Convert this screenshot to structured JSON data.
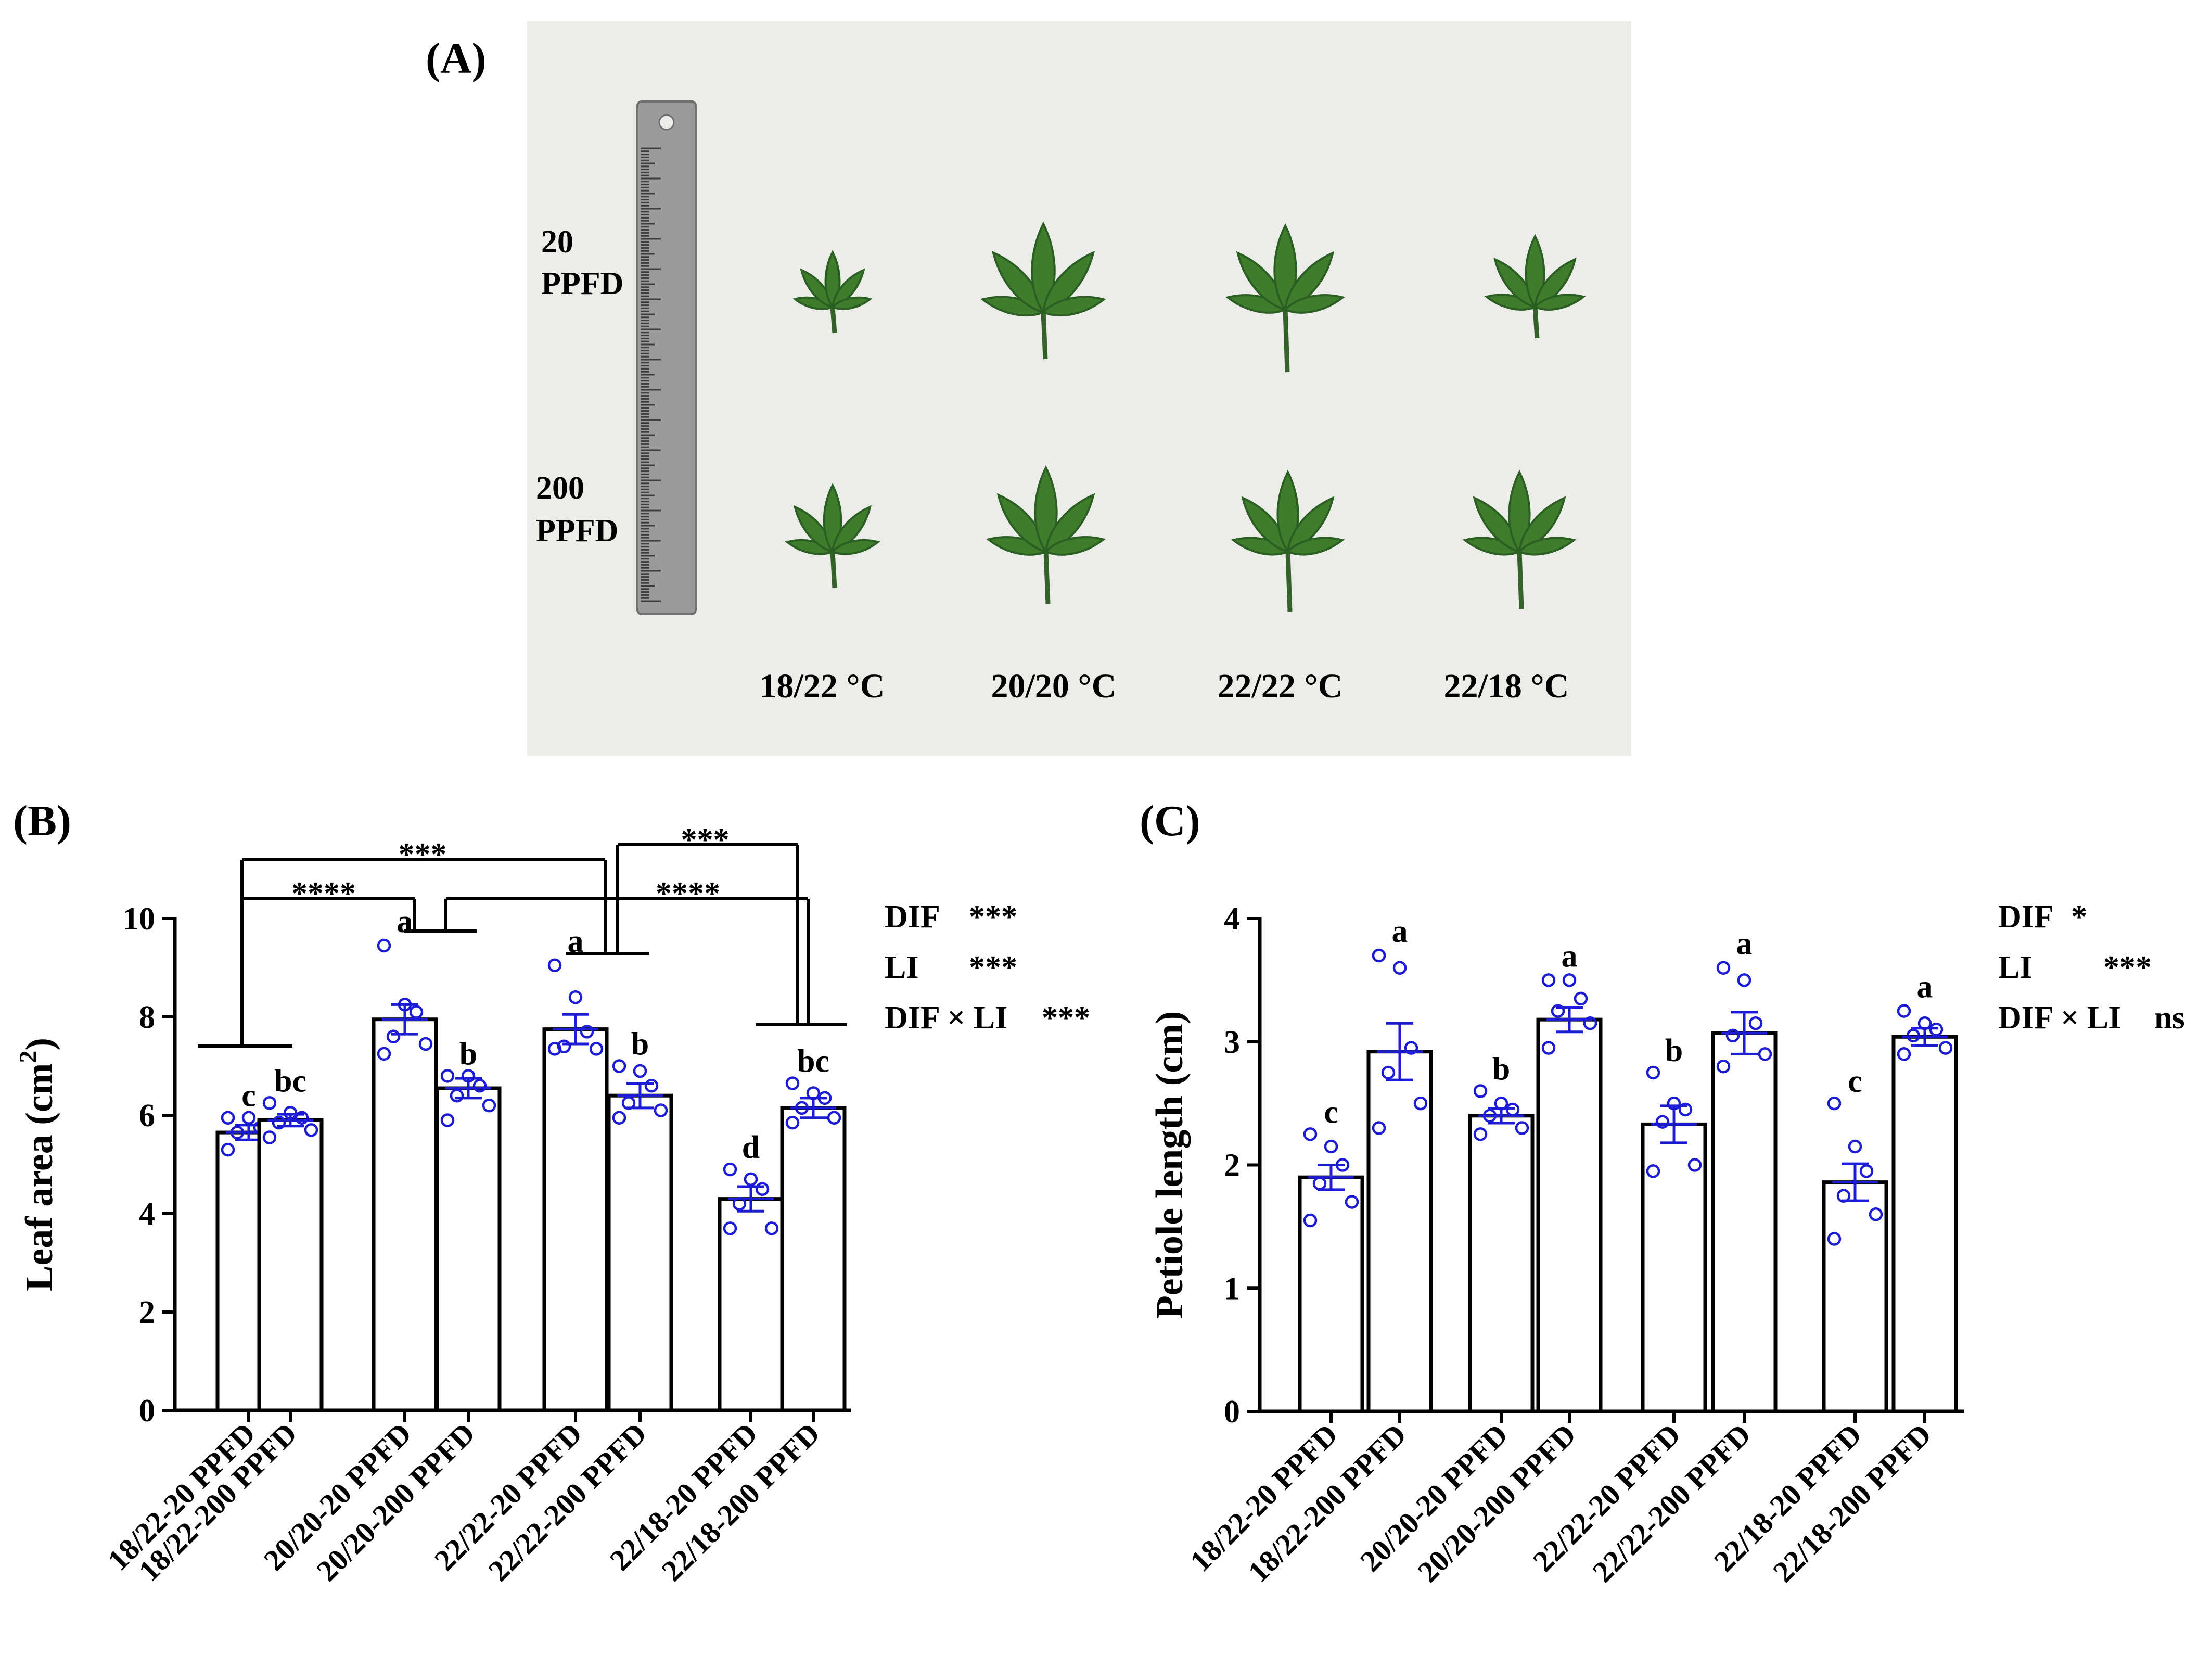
{
  "panel_a": {
    "label": "(A)",
    "rows": [
      "20",
      "PPFD",
      "200",
      "PPFD"
    ],
    "temps": [
      "18/22 °C",
      "20/20 °C",
      "22/22 °C",
      "22/18 °C"
    ]
  },
  "chart_data": [
    {
      "type": "bar",
      "panel": "(B)",
      "ylabel": "Leaf area (cm",
      "ylabel_sup": "2",
      "ylabel_close": ")",
      "ylim": [
        0,
        10
      ],
      "yticks": [
        "0",
        "2",
        "4",
        "6",
        "8",
        "10"
      ],
      "categories": [
        "18/22-20 PPFD",
        "18/22-200 PPFD",
        "20/20-20 PPFD",
        "20/20-200 PPFD",
        "22/22-20 PPFD",
        "22/22-200 PPFD",
        "22/18-20 PPFD",
        "22/18-200 PPFD"
      ],
      "values": [
        5.65,
        5.9,
        7.95,
        6.55,
        7.75,
        6.4,
        4.3,
        6.15
      ],
      "sem": [
        0.15,
        0.12,
        0.3,
        0.2,
        0.3,
        0.25,
        0.25,
        0.2
      ],
      "letters": [
        "c",
        "bc",
        "a",
        "b",
        "a",
        "b",
        "d",
        "bc"
      ],
      "points": [
        [
          5.3,
          5.4,
          5.65,
          5.75,
          5.95,
          5.95
        ],
        [
          5.55,
          5.7,
          5.85,
          5.95,
          6.05,
          6.25
        ],
        [
          7.25,
          7.45,
          7.6,
          8.1,
          8.25,
          9.45
        ],
        [
          5.9,
          6.2,
          6.4,
          6.6,
          6.8,
          6.8
        ],
        [
          7.35,
          7.35,
          7.4,
          7.7,
          8.4,
          9.05
        ],
        [
          5.95,
          6.1,
          6.25,
          6.6,
          6.9,
          7.0
        ],
        [
          3.7,
          3.7,
          4.2,
          4.5,
          4.7,
          4.9
        ],
        [
          5.85,
          5.95,
          6.15,
          6.35,
          6.45,
          6.65
        ]
      ],
      "anova": [
        {
          "factor": "DIF",
          "sig": "***"
        },
        {
          "factor": "LI",
          "sig": "***"
        },
        {
          "factor": "DIF × LI",
          "sig": "***"
        }
      ],
      "comparisons": [
        "***",
        "****",
        "***",
        "****"
      ]
    },
    {
      "type": "bar",
      "panel": "(C)",
      "ylabel": "Petiole length (cm)",
      "ylim": [
        0,
        4
      ],
      "yticks": [
        "0",
        "1",
        "2",
        "3",
        "4"
      ],
      "categories": [
        "18/22-20 PPFD",
        "18/22-200 PPFD",
        "20/20-20 PPFD",
        "20/20-200 PPFD",
        "22/22-20 PPFD",
        "22/22-200 PPFD",
        "22/18-20 PPFD",
        "22/18-200 PPFD"
      ],
      "values": [
        1.9,
        2.92,
        2.4,
        3.18,
        2.33,
        3.07,
        1.86,
        3.04
      ],
      "sem": [
        0.1,
        0.23,
        0.06,
        0.1,
        0.15,
        0.17,
        0.15,
        0.07
      ],
      "letters": [
        "c",
        "a",
        "b",
        "a",
        "b",
        "a",
        "c",
        "a"
      ],
      "points": [
        [
          1.55,
          1.7,
          1.85,
          2.0,
          2.15,
          2.25
        ],
        [
          2.3,
          2.5,
          2.75,
          2.95,
          3.6,
          3.7
        ],
        [
          2.25,
          2.3,
          2.4,
          2.45,
          2.5,
          2.6
        ],
        [
          2.95,
          3.15,
          3.25,
          3.35,
          3.5,
          3.5
        ],
        [
          1.95,
          2.0,
          2.35,
          2.45,
          2.5,
          2.75
        ],
        [
          2.8,
          2.9,
          3.05,
          3.15,
          3.5,
          3.6
        ],
        [
          1.4,
          1.6,
          1.75,
          1.95,
          2.15,
          2.5
        ],
        [
          2.9,
          2.95,
          3.05,
          3.1,
          3.15,
          3.25
        ]
      ],
      "anova": [
        {
          "factor": "DIF",
          "sig": "*"
        },
        {
          "factor": "LI",
          "sig": "***"
        },
        {
          "factor": "DIF × LI",
          "sig": "ns"
        }
      ]
    }
  ],
  "colors": {
    "points": "#1c1cd6",
    "bars": "#000000",
    "photo_bg": "#ececea",
    "leaf": "#3f7d2c",
    "leaf_dark": "#2b5e22",
    "ruler": "#9a9a9a"
  }
}
